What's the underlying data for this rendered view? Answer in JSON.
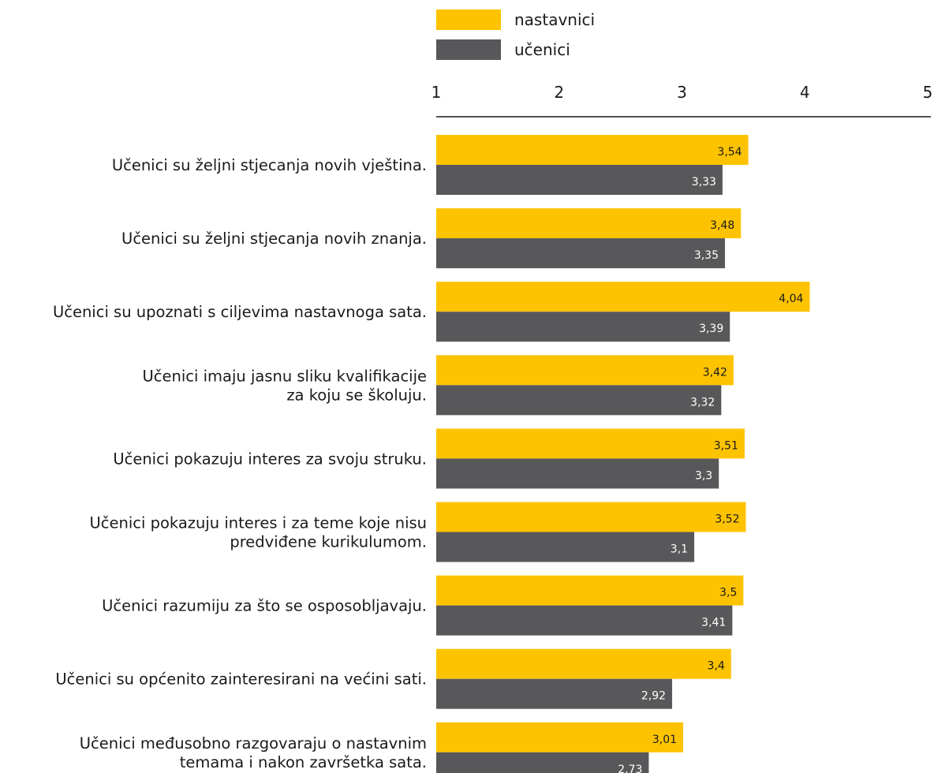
{
  "chart_data": {
    "type": "bar",
    "orientation": "horizontal",
    "xlim": [
      1,
      5
    ],
    "xticks": [
      "1",
      "2",
      "3",
      "4",
      "5"
    ],
    "axis_position": "top",
    "grid": false,
    "legend_position": "top",
    "categories": [
      [
        "Učenici su željni stjecanja novih vještina."
      ],
      [
        "Učenici su željni stjecanja novih znanja."
      ],
      [
        "Učenici su upoznati s ciljevima nastavnoga sata."
      ],
      [
        "Učenici imaju jasnu sliku kvalifikacije",
        "za koju se školuju."
      ],
      [
        "Učenici pokazuju interes za svoju struku."
      ],
      [
        "Učenici pokazuju interes i za teme koje nisu",
        "predviđene kurikulumom."
      ],
      [
        "Učenici razumiju za što se osposobljavaju."
      ],
      [
        "Učenici su općenito zainteresirani na većini sati."
      ],
      [
        "Učenici međusobno razgovaraju o nastavnim",
        "temama i nakon završetka sata."
      ]
    ],
    "series": [
      {
        "name": "nastavnici",
        "color": "#fdc300",
        "label_color": "#1a1a1a",
        "values": [
          3.54,
          3.48,
          4.04,
          3.42,
          3.51,
          3.52,
          3.5,
          3.4,
          3.01
        ],
        "labels": [
          "3,54",
          "3,48",
          "4,04",
          "3,42",
          "3,51",
          "3,52",
          "3,5",
          "3,4",
          "3,01"
        ]
      },
      {
        "name": "učenici",
        "color": "#58585a",
        "label_color": "#ffffff",
        "values": [
          3.33,
          3.35,
          3.39,
          3.32,
          3.3,
          3.1,
          3.41,
          2.92,
          2.73
        ],
        "labels": [
          "3,33",
          "3,35",
          "3,39",
          "3,32",
          "3,3",
          "3,1",
          "3,41",
          "2,92",
          "2,73"
        ]
      }
    ]
  }
}
